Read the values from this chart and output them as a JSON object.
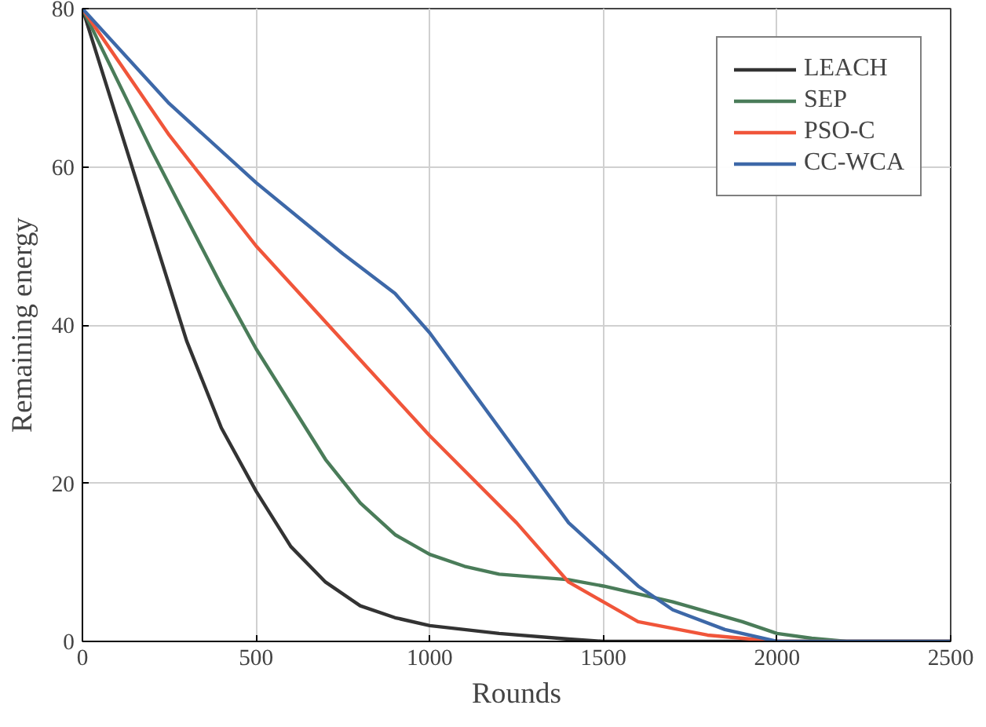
{
  "chart_data": {
    "type": "line",
    "xlabel": "Rounds",
    "ylabel": "Remaining energy",
    "xlim": [
      0,
      2500
    ],
    "xticks": [
      0,
      500,
      1000,
      1500,
      2000,
      2500
    ],
    "ylim": [
      0,
      80
    ],
    "yticks": [
      0,
      20,
      40,
      60,
      80
    ],
    "grid": true,
    "legend": "top right",
    "marker": "none",
    "line_style": "solid",
    "series": [
      {
        "name": "LEACH",
        "color": "#333333",
        "x": [
          0,
          100,
          200,
          300,
          400,
          500,
          600,
          700,
          800,
          900,
          1000,
          1200,
          1400,
          1500,
          2500
        ],
        "values": [
          80,
          66,
          52,
          38,
          27,
          19,
          12,
          7.5,
          4.5,
          3,
          2,
          1,
          0.3,
          0,
          0
        ]
      },
      {
        "name": "SEP",
        "color": "#4a7c59",
        "x": [
          0,
          200,
          400,
          500,
          600,
          700,
          800,
          900,
          1000,
          1100,
          1200,
          1400,
          1500,
          1700,
          1900,
          2000,
          2100,
          2200,
          2500
        ],
        "values": [
          80,
          62,
          45,
          37,
          30,
          23,
          17.5,
          13.5,
          11,
          9.5,
          8.5,
          7.8,
          7,
          5,
          2.5,
          1,
          0.4,
          0,
          0
        ]
      },
      {
        "name": "PSO-C",
        "color": "#f0553a",
        "x": [
          0,
          250,
          500,
          750,
          1000,
          1250,
          1400,
          1500,
          1600,
          1800,
          2000,
          2500
        ],
        "values": [
          80,
          64,
          50,
          38,
          26,
          15,
          7.5,
          5,
          2.5,
          0.8,
          0,
          0
        ]
      },
      {
        "name": "CC-WCA",
        "color": "#3d68a8",
        "x": [
          0,
          250,
          500,
          750,
          900,
          1000,
          1100,
          1250,
          1400,
          1500,
          1600,
          1700,
          1850,
          2000,
          2500
        ],
        "values": [
          80,
          68,
          58,
          49,
          44,
          39,
          33,
          24,
          15,
          11,
          7,
          4,
          1.5,
          0,
          0
        ]
      }
    ]
  }
}
